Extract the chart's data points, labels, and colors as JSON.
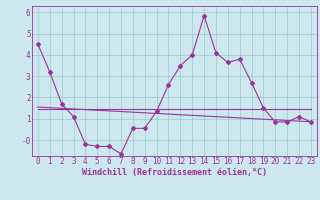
{
  "xlabel": "Windchill (Refroidissement éolien,°C)",
  "bg_color": "#cce8ee",
  "line_color": "#993399",
  "grid_color": "#99cccc",
  "x_data": [
    0,
    1,
    2,
    3,
    4,
    5,
    6,
    7,
    8,
    9,
    10,
    11,
    12,
    13,
    14,
    15,
    16,
    17,
    18,
    19,
    20,
    21,
    22,
    23
  ],
  "y_main": [
    4.5,
    3.2,
    1.7,
    1.1,
    -0.2,
    -0.3,
    -0.3,
    -0.65,
    0.55,
    0.55,
    1.35,
    2.6,
    3.5,
    4.0,
    5.85,
    4.1,
    3.65,
    3.8,
    2.7,
    1.5,
    0.85,
    0.85,
    1.1,
    0.85
  ],
  "y_flat": [
    1.45,
    1.45,
    1.45,
    1.45,
    1.45,
    1.45,
    1.45,
    1.45,
    1.45,
    1.45,
    1.45,
    1.45,
    1.45,
    1.45,
    1.45,
    1.45,
    1.45,
    1.45,
    1.45,
    1.45,
    1.45,
    1.45,
    1.45,
    1.45
  ],
  "y_slope": [
    1.55,
    1.52,
    1.49,
    1.46,
    1.43,
    1.4,
    1.37,
    1.34,
    1.31,
    1.28,
    1.25,
    1.22,
    1.19,
    1.16,
    1.13,
    1.1,
    1.07,
    1.04,
    1.01,
    0.98,
    0.95,
    0.92,
    0.89,
    0.86
  ],
  "xlim": [
    -0.5,
    23.5
  ],
  "ylim": [
    -0.75,
    6.3
  ],
  "xticks": [
    0,
    1,
    2,
    3,
    4,
    5,
    6,
    7,
    8,
    9,
    10,
    11,
    12,
    13,
    14,
    15,
    16,
    17,
    18,
    19,
    20,
    21,
    22,
    23
  ],
  "yticks": [
    0,
    1,
    2,
    3,
    4,
    5,
    6
  ],
  "ytick_labels": [
    "-0",
    "1",
    "2",
    "3",
    "4",
    "5",
    "6"
  ],
  "marker": "D",
  "marker_size": 2.0,
  "lw": 0.8,
  "tick_fontsize": 5.5,
  "xlabel_fontsize": 6.0
}
